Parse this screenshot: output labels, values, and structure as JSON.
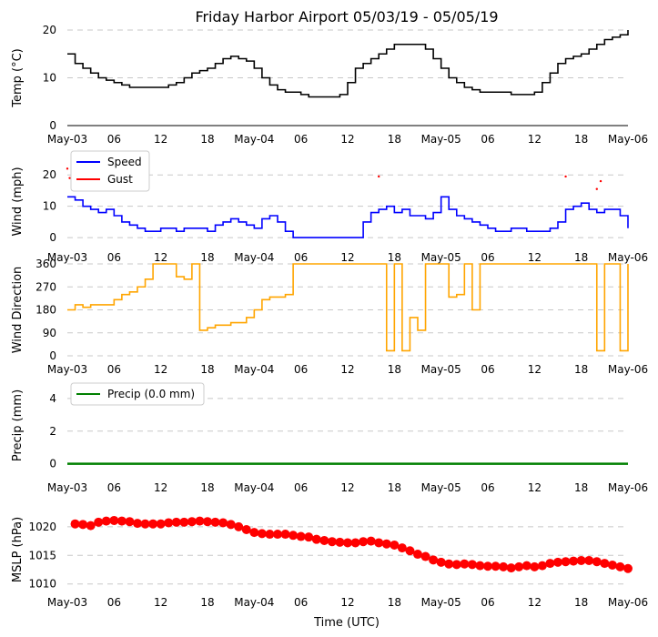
{
  "chart_data": {
    "title": "Friday Harbor Airport 05/03/19 - 05/05/19",
    "xlabel": "Time (UTC)",
    "x_tick_labels": [
      "May-03",
      "06",
      "12",
      "18",
      "May-04",
      "06",
      "12",
      "18",
      "May-05",
      "06",
      "12",
      "18",
      "May-06"
    ],
    "x_range_hours": [
      0,
      72
    ],
    "panels": [
      {
        "id": "temp",
        "type": "line",
        "ylabel": "Temp (°C)",
        "ylim": [
          0,
          20
        ],
        "yticks": [
          0,
          10,
          20
        ],
        "grid": true,
        "color": "#000000",
        "series": [
          {
            "name": "Temp",
            "x": [
              0,
              1,
              2,
              3,
              4,
              5,
              6,
              7,
              8,
              9,
              10,
              11,
              12,
              13,
              14,
              15,
              16,
              17,
              18,
              19,
              20,
              21,
              22,
              23,
              24,
              25,
              26,
              27,
              28,
              29,
              30,
              31,
              32,
              33,
              34,
              35,
              36,
              37,
              38,
              39,
              40,
              41,
              42,
              43,
              44,
              45,
              46,
              47,
              48,
              49,
              50,
              51,
              52,
              53,
              54,
              55,
              56,
              57,
              58,
              59,
              60,
              61,
              62,
              63,
              64,
              65,
              66,
              67,
              68,
              69,
              70,
              71,
              72
            ],
            "values": [
              15,
              13,
              12,
              11,
              10,
              9.5,
              9,
              8.5,
              8,
              8,
              8,
              8,
              8,
              8.5,
              9,
              10,
              11,
              11.5,
              12,
              13,
              14,
              14.5,
              14,
              13.5,
              12,
              10,
              8.5,
              7.5,
              7,
              7,
              6.5,
              6,
              6,
              6,
              6,
              6.5,
              9,
              12,
              13,
              14,
              15,
              16,
              17,
              17,
              17,
              17,
              16,
              14,
              12,
              10,
              9,
              8,
              7.5,
              7,
              7,
              7,
              7,
              6.5,
              6.5,
              6.5,
              7,
              9,
              11,
              13,
              14,
              14.5,
              15,
              16,
              17,
              18,
              18.5,
              19,
              20
            ]
          }
        ]
      },
      {
        "id": "wind",
        "type": "line",
        "ylabel": "Wind (mph)",
        "ylim": [
          -2,
          25
        ],
        "yticks": [
          0,
          10,
          20
        ],
        "grid": true,
        "legend": [
          "Speed",
          "Gust"
        ],
        "series": [
          {
            "name": "Speed",
            "color": "#0000ff",
            "x": [
              0,
              1,
              2,
              3,
              4,
              5,
              6,
              7,
              8,
              9,
              10,
              11,
              12,
              13,
              14,
              15,
              16,
              17,
              18,
              19,
              20,
              21,
              22,
              23,
              24,
              25,
              26,
              27,
              28,
              29,
              30,
              31,
              32,
              33,
              34,
              35,
              36,
              37,
              38,
              39,
              40,
              41,
              42,
              43,
              44,
              45,
              46,
              47,
              48,
              49,
              50,
              51,
              52,
              53,
              54,
              55,
              56,
              57,
              58,
              59,
              60,
              61,
              62,
              63,
              64,
              65,
              66,
              67,
              68,
              69,
              70,
              71,
              72
            ],
            "values": [
              13,
              12,
              10,
              9,
              8,
              9,
              7,
              5,
              4,
              3,
              2,
              2,
              3,
              3,
              2,
              3,
              3,
              3,
              2,
              4,
              5,
              6,
              5,
              4,
              3,
              6,
              7,
              5,
              2,
              0,
              0,
              0,
              0,
              0,
              0,
              0,
              0,
              0,
              5,
              8,
              9,
              10,
              8,
              9,
              7,
              7,
              6,
              8,
              13,
              9,
              7,
              6,
              5,
              4,
              3,
              2,
              2,
              3,
              3,
              2,
              2,
              2,
              3,
              5,
              9,
              10,
              11,
              9,
              8,
              9,
              9,
              7,
              3
            ]
          },
          {
            "name": "Gust",
            "color": "#ff0000",
            "x": [
              0,
              0.3,
              0.6,
              40,
              64,
              68,
              68.5
            ],
            "values": [
              22,
              19,
              21,
              19.5,
              19.5,
              15.5,
              18
            ]
          }
        ]
      },
      {
        "id": "winddir",
        "type": "line",
        "ylabel": "Wind Direction",
        "ylim": [
          0,
          360
        ],
        "yticks": [
          0,
          90,
          180,
          270,
          360
        ],
        "grid": true,
        "color": "#ffa500",
        "series": [
          {
            "name": "Wind Direction",
            "x": [
              0,
              1,
              2,
              3,
              4,
              5,
              6,
              7,
              8,
              9,
              10,
              11,
              12,
              13,
              14,
              15,
              16,
              17,
              18,
              19,
              20,
              21,
              22,
              23,
              24,
              25,
              26,
              27,
              28,
              29,
              30,
              31,
              32,
              33,
              34,
              35,
              36,
              37,
              38,
              39,
              40,
              41,
              42,
              43,
              44,
              45,
              46,
              47,
              48,
              49,
              50,
              51,
              52,
              53,
              54,
              55,
              56,
              57,
              58,
              59,
              60,
              61,
              62,
              63,
              64,
              65,
              66,
              67,
              68,
              69,
              70,
              71,
              72
            ],
            "values": [
              180,
              200,
              190,
              200,
              200,
              200,
              220,
              240,
              250,
              270,
              300,
              360,
              360,
              360,
              310,
              300,
              360,
              100,
              110,
              120,
              120,
              130,
              130,
              150,
              180,
              220,
              230,
              230,
              240,
              360,
              360,
              360,
              360,
              360,
              360,
              360,
              360,
              360,
              360,
              360,
              360,
              20,
              360,
              20,
              150,
              100,
              360,
              360,
              360,
              230,
              240,
              360,
              180,
              360,
              360,
              360,
              360,
              360,
              360,
              360,
              360,
              360,
              360,
              360,
              360,
              360,
              360,
              360,
              20,
              360,
              360,
              20,
              360
            ]
          }
        ]
      },
      {
        "id": "precip",
        "type": "line",
        "ylabel": "Precip (mm)",
        "ylim": [
          -0.3,
          5
        ],
        "yticks": [
          0,
          2,
          4
        ],
        "grid": true,
        "color": "#008000",
        "legend": [
          "Precip (0.0 mm)"
        ],
        "series": [
          {
            "name": "Precip (0.0 mm)",
            "x": [
              0,
              72
            ],
            "values": [
              0,
              0
            ]
          }
        ]
      },
      {
        "id": "mslp",
        "type": "scatter",
        "ylabel": "MSLP (hPa)",
        "ylim": [
          1009,
          1023
        ],
        "yticks": [
          1010,
          1015,
          1020
        ],
        "grid": true,
        "color": "#ff0000",
        "series": [
          {
            "name": "MSLP",
            "x": [
              1,
              2,
              3,
              4,
              5,
              6,
              7,
              8,
              9,
              10,
              11,
              12,
              13,
              14,
              15,
              16,
              17,
              18,
              19,
              20,
              21,
              22,
              23,
              24,
              25,
              26,
              27,
              28,
              29,
              30,
              31,
              32,
              33,
              34,
              35,
              36,
              37,
              38,
              39,
              40,
              41,
              42,
              43,
              44,
              45,
              46,
              47,
              48,
              49,
              50,
              51,
              52,
              53,
              54,
              55,
              56,
              57,
              58,
              59,
              60,
              61,
              62,
              63,
              64,
              65,
              66,
              67,
              68,
              69,
              70,
              71,
              72
            ],
            "values": [
              1020.5,
              1020.4,
              1020.2,
              1020.8,
              1021.0,
              1021.1,
              1021.0,
              1020.9,
              1020.6,
              1020.5,
              1020.5,
              1020.5,
              1020.7,
              1020.8,
              1020.8,
              1020.9,
              1021.0,
              1020.9,
              1020.8,
              1020.7,
              1020.4,
              1020.0,
              1019.5,
              1019.0,
              1018.8,
              1018.7,
              1018.7,
              1018.7,
              1018.5,
              1018.3,
              1018.2,
              1017.8,
              1017.6,
              1017.4,
              1017.3,
              1017.2,
              1017.2,
              1017.4,
              1017.5,
              1017.2,
              1017.0,
              1016.8,
              1016.3,
              1015.8,
              1015.2,
              1014.8,
              1014.2,
              1013.8,
              1013.5,
              1013.4,
              1013.5,
              1013.4,
              1013.2,
              1013.1,
              1013.1,
              1013.0,
              1012.8,
              1013.0,
              1013.2,
              1013.0,
              1013.2,
              1013.6,
              1013.8,
              1013.9,
              1014.0,
              1014.1,
              1014.1,
              1013.9,
              1013.6,
              1013.3,
              1013.0,
              1012.7
            ]
          }
        ]
      }
    ]
  }
}
